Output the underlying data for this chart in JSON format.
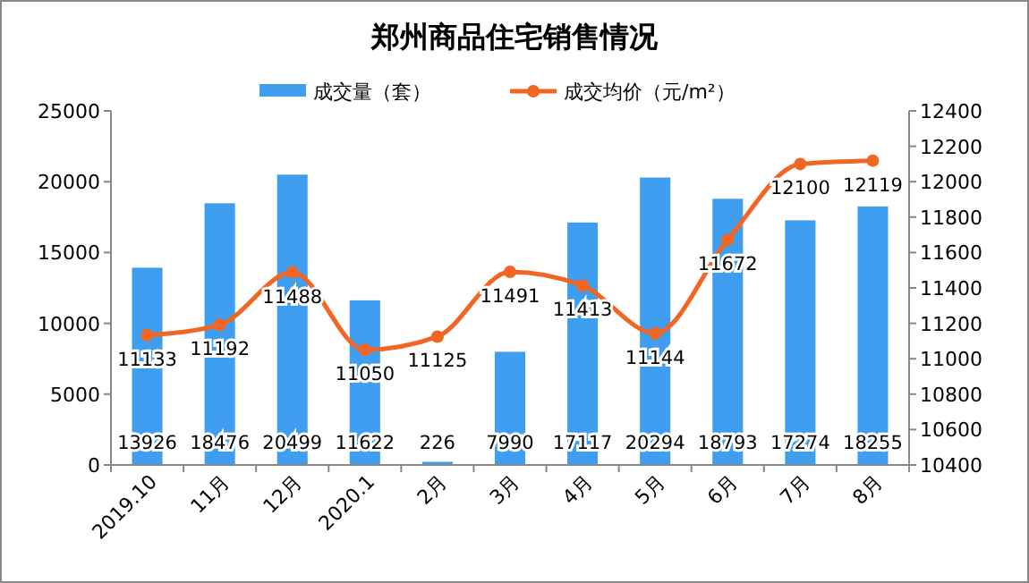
{
  "chart_data": {
    "type": "bar",
    "title": "郑州商品住宅销售情况",
    "categories": [
      "2019.10",
      "11月",
      "12月",
      "2020.1",
      "2月",
      "3月",
      "4月",
      "5月",
      "6月",
      "7月",
      "8月"
    ],
    "series": [
      {
        "name": "成交量（套）",
        "color": "#3f9ef0",
        "values": [
          13926,
          18476,
          20499,
          11622,
          226,
          7990,
          17117,
          20294,
          18793,
          17274,
          18255
        ]
      },
      {
        "name": "成交均价（元/m²）",
        "type": "line",
        "axis": "y2",
        "color": "#f26522",
        "marker": "circle",
        "values": [
          11133,
          11192,
          11488,
          11050,
          11125,
          11491,
          11413,
          11144,
          11672,
          12100,
          12119
        ]
      }
    ],
    "ylim": [
      0,
      25000
    ],
    "yticks": [
      0,
      5000,
      10000,
      15000,
      20000,
      25000
    ],
    "y2lim": [
      10400,
      12400
    ],
    "y2ticks": [
      10400,
      10600,
      10800,
      11000,
      11200,
      11400,
      11600,
      11800,
      12000,
      12200,
      12400
    ],
    "data_labels": true,
    "legend": "top",
    "grid": false
  }
}
